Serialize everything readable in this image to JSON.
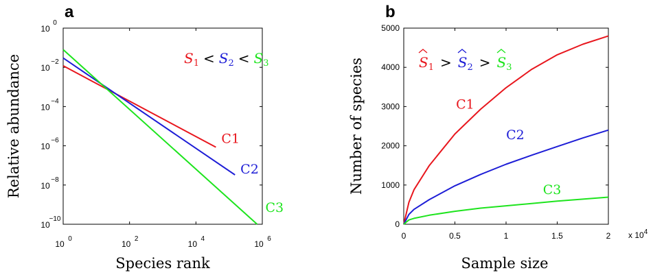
{
  "chart_data": [
    {
      "type": "line",
      "panel_label": "a",
      "xlabel": "Species rank",
      "ylabel": "Relative abundance",
      "x_scale": "log",
      "y_scale": "log",
      "xlim": [
        1,
        1000000
      ],
      "ylim": [
        1e-10,
        1
      ],
      "x_ticks": [
        {
          "value": 1,
          "base": "10",
          "exp": "0"
        },
        {
          "value": 100,
          "base": "10",
          "exp": "2"
        },
        {
          "value": 10000,
          "base": "10",
          "exp": "4"
        },
        {
          "value": 1000000,
          "base": "10",
          "exp": "6"
        }
      ],
      "y_ticks": [
        {
          "value": 1,
          "base": "10",
          "exp": "0"
        },
        {
          "value": 0.01,
          "base": "10",
          "exp": "−2"
        },
        {
          "value": 0.0001,
          "base": "10",
          "exp": "−4"
        },
        {
          "value": 1e-06,
          "base": "10",
          "exp": "−6"
        },
        {
          "value": 1e-08,
          "base": "10",
          "exp": "−8"
        },
        {
          "value": 1e-10,
          "base": "10",
          "exp": "−10"
        }
      ],
      "series": [
        {
          "name": "C1",
          "color": "#e8161d",
          "x": [
            1,
            40000
          ],
          "y": [
            0.012,
            8.5e-07
          ]
        },
        {
          "name": "C2",
          "color": "#1d1dd6",
          "x": [
            1,
            150000
          ],
          "y": [
            0.03,
            3.3e-08
          ]
        },
        {
          "name": "C3",
          "color": "#1de41d",
          "x": [
            1,
            700000
          ],
          "y": [
            0.08,
            1e-10
          ]
        }
      ],
      "annotation": {
        "s1": "S",
        "sub1": "1",
        "s2": "S",
        "sub2": "2",
        "s3": "S",
        "sub3": "3",
        "op": "<"
      }
    },
    {
      "type": "line",
      "panel_label": "b",
      "xlabel": "Sample size",
      "ylabel": "Number of species",
      "xlim": [
        0,
        20000
      ],
      "ylim": [
        0,
        5000
      ],
      "x_ticks": [
        {
          "value": 0,
          "label": "0"
        },
        {
          "value": 5000,
          "label": "0.5"
        },
        {
          "value": 10000,
          "label": "1"
        },
        {
          "value": 15000,
          "label": "1.5"
        },
        {
          "value": 20000,
          "label": "2"
        }
      ],
      "x_multiplier": {
        "base": "x 10",
        "exp": "4"
      },
      "y_ticks": [
        {
          "value": 0,
          "label": "0"
        },
        {
          "value": 1000,
          "label": "1000"
        },
        {
          "value": 2000,
          "label": "2000"
        },
        {
          "value": 3000,
          "label": "3000"
        },
        {
          "value": 4000,
          "label": "4000"
        },
        {
          "value": 5000,
          "label": "5000"
        }
      ],
      "series": [
        {
          "name": "C1",
          "color": "#e8161d",
          "x": [
            0,
            500,
            1000,
            2500,
            5000,
            7500,
            10000,
            12500,
            15000,
            17500,
            20000
          ],
          "y": [
            0,
            560,
            880,
            1500,
            2300,
            2930,
            3480,
            3950,
            4320,
            4590,
            4800
          ]
        },
        {
          "name": "C2",
          "color": "#1d1dd6",
          "x": [
            0,
            500,
            1000,
            2500,
            5000,
            7500,
            10000,
            12500,
            15000,
            17500,
            20000
          ],
          "y": [
            0,
            250,
            380,
            630,
            980,
            1270,
            1530,
            1760,
            1980,
            2200,
            2400
          ]
        },
        {
          "name": "C3",
          "color": "#1de41d",
          "x": [
            0,
            500,
            1000,
            2500,
            5000,
            7500,
            10000,
            12500,
            15000,
            17500,
            20000
          ],
          "y": [
            0,
            110,
            150,
            230,
            330,
            410,
            470,
            530,
            590,
            640,
            690
          ]
        }
      ],
      "annotation": {
        "s1": "S",
        "sub1": "1",
        "s2": "S",
        "sub2": "2",
        "s3": "S",
        "sub3": "3",
        "op": ">"
      }
    }
  ]
}
